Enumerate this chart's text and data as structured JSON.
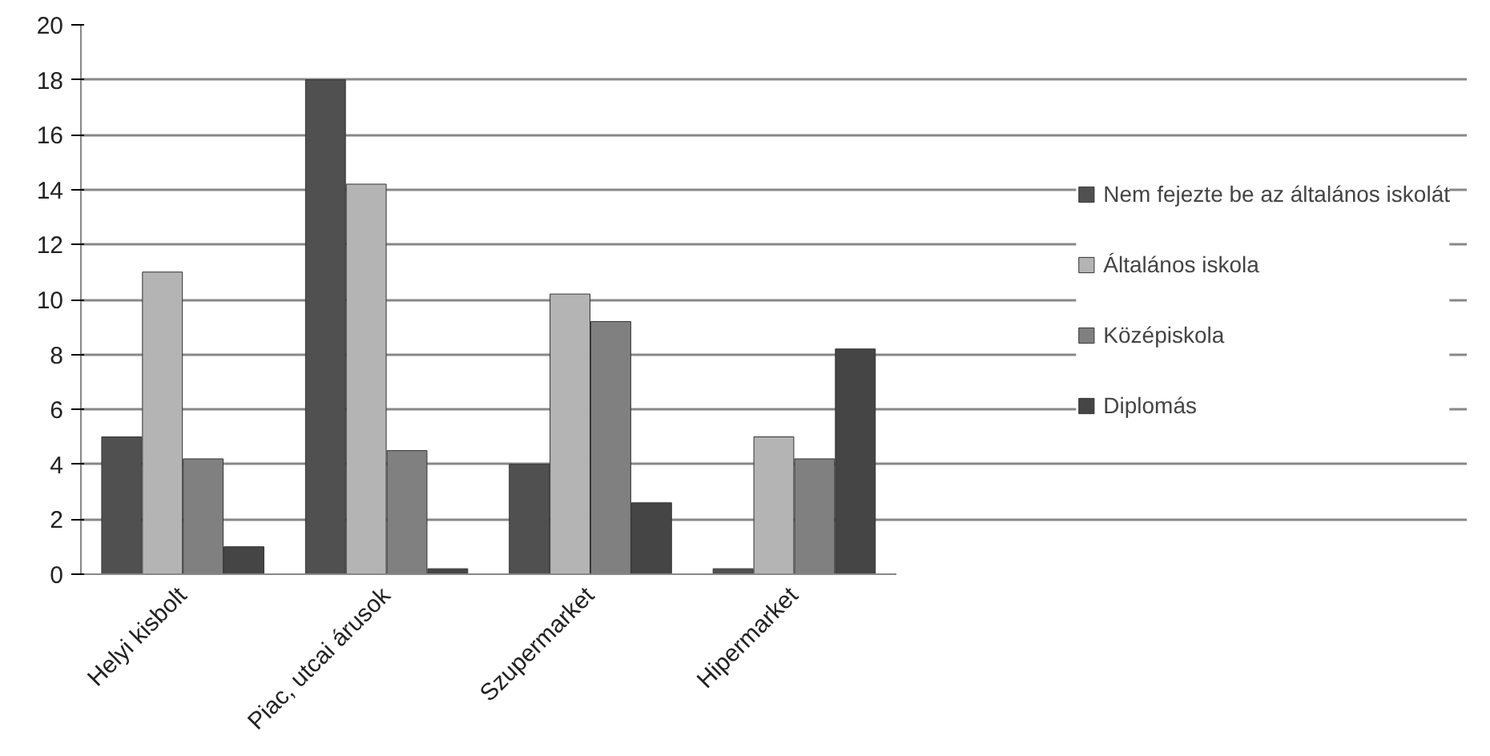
{
  "chart_data": {
    "type": "bar",
    "categories": [
      "Helyi kisbolt",
      "Piac, utcai árusok",
      "Szupermarket",
      "Hipermarket"
    ],
    "series": [
      {
        "name": "Nem fejezte be az általános iskolát",
        "color": "#505050",
        "values": [
          5,
          18,
          4,
          0.2
        ]
      },
      {
        "name": "Általános iskola",
        "color": "#b4b4b4",
        "values": [
          11,
          14.2,
          10.2,
          5
        ]
      },
      {
        "name": "Középiskola",
        "color": "#808080",
        "values": [
          4.2,
          4.5,
          9.2,
          4.2
        ]
      },
      {
        "name": "Diplomás",
        "color": "#454545",
        "values": [
          1,
          0.2,
          2.6,
          8.2
        ]
      }
    ],
    "ylim": [
      0,
      20
    ],
    "yticks": [
      0,
      2,
      4,
      6,
      8,
      10,
      12,
      14,
      16,
      18,
      20
    ],
    "grid": "y",
    "legend": "right"
  }
}
